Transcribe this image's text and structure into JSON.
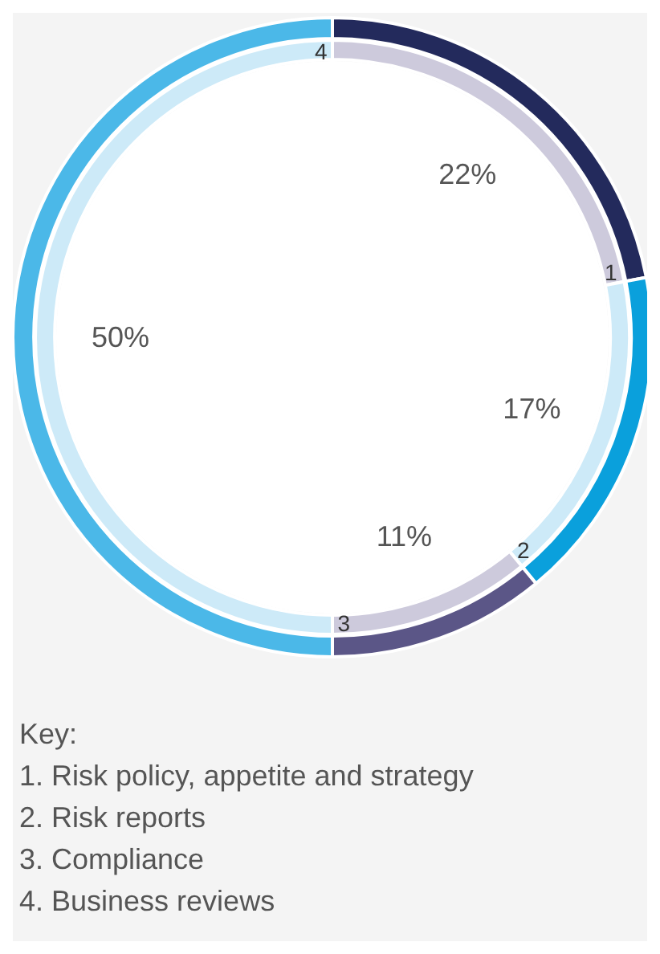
{
  "chart_data": {
    "type": "donut",
    "categories": [
      "1",
      "2",
      "3",
      "4"
    ],
    "series": [
      {
        "values": [
          22,
          17,
          11,
          50
        ],
        "colors": [
          "#cdcadc",
          "#cdeaf8",
          "#cdcadc",
          "#cdeaf8"
        ],
        "value_labels": [
          "22%",
          "17%",
          "11%",
          "50%"
        ]
      },
      {
        "values": [
          22,
          17,
          11,
          50
        ],
        "colors": [
          "#232a5c",
          "#0aa0dc",
          "#5b5687",
          "#4bb8e8"
        ]
      }
    ],
    "annotations": [
      "Key:",
      "1. Risk policy, appetite and strategy",
      "2. Risk reports",
      "3. Compliance",
      "4. Business reviews"
    ]
  }
}
